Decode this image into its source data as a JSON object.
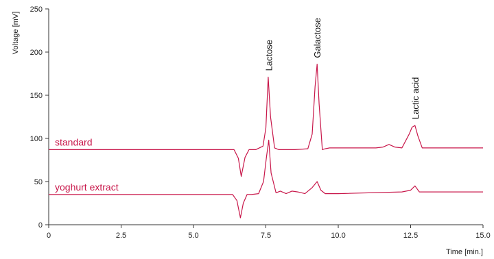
{
  "chart_data": {
    "type": "line",
    "title": "",
    "xlabel": "Time [min.]",
    "ylabel": "Voltage [mV]",
    "xlim": [
      0,
      15
    ],
    "ylim": [
      0,
      250
    ],
    "x_ticks": [
      "0",
      "2.5",
      "5.0",
      "7.5",
      "10.0",
      "12.5",
      "15.0"
    ],
    "y_ticks": [
      "0",
      "50",
      "100",
      "150",
      "200",
      "250"
    ],
    "grid": false,
    "line_color": "#c8174a",
    "series": [
      {
        "name": "standard",
        "x": [
          0,
          6.4,
          6.55,
          6.65,
          6.78,
          6.92,
          7.15,
          7.4,
          7.5,
          7.58,
          7.66,
          7.8,
          7.95,
          8.5,
          8.95,
          9.1,
          9.2,
          9.27,
          9.34,
          9.45,
          9.55,
          9.7,
          10.0,
          11.3,
          11.55,
          11.75,
          11.95,
          12.2,
          12.45,
          12.55,
          12.65,
          12.75,
          12.9,
          15.0
        ],
        "y": [
          87,
          87,
          77,
          56,
          78,
          87,
          87,
          91,
          112,
          171,
          125,
          89,
          87,
          87,
          88,
          105,
          160,
          186,
          140,
          87,
          88,
          89,
          89,
          89,
          90,
          93,
          90,
          89,
          105,
          113,
          115,
          103,
          89,
          89
        ]
      },
      {
        "name": "yoghurt extract",
        "x": [
          0,
          6.35,
          6.5,
          6.62,
          6.72,
          6.85,
          7.0,
          7.25,
          7.42,
          7.52,
          7.6,
          7.68,
          7.85,
          8.0,
          8.2,
          8.4,
          8.6,
          8.85,
          9.1,
          9.27,
          9.4,
          9.55,
          10.0,
          12.2,
          12.5,
          12.65,
          12.8,
          15.0
        ],
        "y": [
          35,
          35,
          28,
          8,
          25,
          35,
          35,
          36,
          50,
          78,
          98,
          60,
          37,
          39,
          36,
          39,
          38,
          36,
          43,
          50,
          40,
          36,
          36,
          38,
          40,
          45,
          38,
          38
        ]
      }
    ],
    "annotations": [
      {
        "text": "Lactose",
        "x": 7.6,
        "y": 171
      },
      {
        "text": "Galactose",
        "x": 9.27,
        "y": 186
      },
      {
        "text": "Lactic acid",
        "x": 12.65,
        "y": 115
      }
    ]
  }
}
